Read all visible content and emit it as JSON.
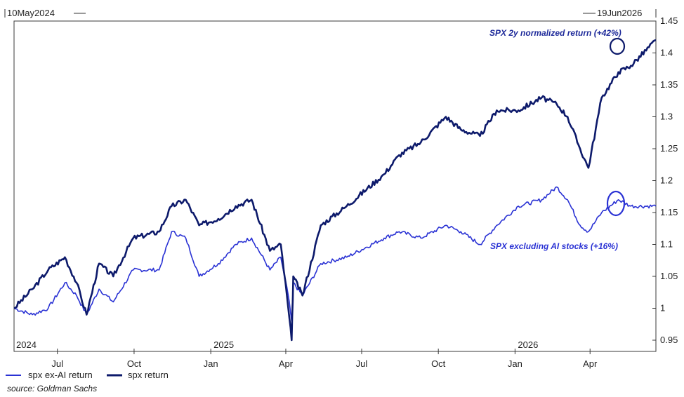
{
  "range": {
    "start_label": "10May2024",
    "end_label": "19Jun2026"
  },
  "annotations": {
    "spx": "SPX 2y normalized return (+42%)",
    "exai": "SPX excluding AI stocks (+16%)"
  },
  "source": "source: Goldman Sachs",
  "colors": {
    "spx": "#0d1a6b",
    "exai": "#2a32d4",
    "annotation_text": "#1e2a9a"
  },
  "chart_data": {
    "type": "line",
    "ylim": [
      0.95,
      1.45
    ],
    "yticks": [
      "1.45",
      "1.4",
      "1.35",
      "1.3",
      "1.25",
      "1.2",
      "1.15",
      "1.1",
      "1.05",
      "1",
      "0.95"
    ],
    "x_month_ticks": [
      "Jul",
      "Oct",
      "Jan",
      "Apr",
      "Jul",
      "Oct",
      "Jan",
      "Apr"
    ],
    "x_year_labels": [
      "2024",
      "2025",
      "2026"
    ],
    "legend_position": "bottom-left",
    "grid": false,
    "series": [
      {
        "name": "spx ex-AI return",
        "x": [
          "2024-05-10",
          "2024-06-01",
          "2024-06-20",
          "2024-07-10",
          "2024-07-24",
          "2024-08-05",
          "2024-08-20",
          "2024-09-06",
          "2024-09-30",
          "2024-10-31",
          "2024-11-15",
          "2024-12-02",
          "2024-12-18",
          "2025-01-10",
          "2025-01-31",
          "2025-02-19",
          "2025-03-13",
          "2025-03-26",
          "2025-04-04",
          "2025-04-08",
          "2025-04-10",
          "2025-04-21",
          "2025-05-13",
          "2025-06-13",
          "2025-07-28",
          "2025-08-15",
          "2025-09-10",
          "2025-10-10",
          "2025-10-28",
          "2025-11-20",
          "2025-12-10",
          "2026-01-05",
          "2026-02-02",
          "2026-02-20",
          "2026-03-05",
          "2026-03-20",
          "2026-03-30",
          "2026-04-15",
          "2026-05-05",
          "2026-05-20",
          "2026-06-19"
        ],
        "values": [
          1.0,
          0.99,
          1.0,
          1.04,
          1.02,
          0.99,
          1.03,
          1.01,
          1.06,
          1.06,
          1.12,
          1.11,
          1.05,
          1.07,
          1.1,
          1.11,
          1.06,
          1.08,
          1.02,
          0.98,
          1.04,
          1.02,
          1.07,
          1.08,
          1.11,
          1.12,
          1.11,
          1.13,
          1.12,
          1.1,
          1.13,
          1.16,
          1.17,
          1.19,
          1.17,
          1.13,
          1.12,
          1.15,
          1.17,
          1.16,
          1.16
        ]
      },
      {
        "name": "spx return",
        "x": [
          "2024-05-10",
          "2024-06-01",
          "2024-06-20",
          "2024-07-10",
          "2024-07-24",
          "2024-08-05",
          "2024-08-20",
          "2024-09-06",
          "2024-09-30",
          "2024-10-31",
          "2024-11-15",
          "2024-12-02",
          "2024-12-18",
          "2025-01-10",
          "2025-01-31",
          "2025-02-19",
          "2025-03-13",
          "2025-03-26",
          "2025-04-04",
          "2025-04-08",
          "2025-04-10",
          "2025-04-21",
          "2025-05-13",
          "2025-06-13",
          "2025-07-28",
          "2025-08-15",
          "2025-09-10",
          "2025-10-10",
          "2025-10-28",
          "2025-11-20",
          "2025-12-10",
          "2026-01-05",
          "2026-02-02",
          "2026-02-20",
          "2026-03-05",
          "2026-03-20",
          "2026-03-30",
          "2026-04-15",
          "2026-05-05",
          "2026-05-20",
          "2026-06-19"
        ],
        "values": [
          1.0,
          1.03,
          1.06,
          1.08,
          1.04,
          0.99,
          1.07,
          1.05,
          1.11,
          1.12,
          1.16,
          1.17,
          1.13,
          1.14,
          1.16,
          1.17,
          1.09,
          1.1,
          1.0,
          0.95,
          1.05,
          1.02,
          1.13,
          1.16,
          1.21,
          1.24,
          1.26,
          1.3,
          1.28,
          1.27,
          1.31,
          1.31,
          1.33,
          1.32,
          1.3,
          1.25,
          1.22,
          1.33,
          1.37,
          1.38,
          1.42
        ]
      }
    ]
  }
}
